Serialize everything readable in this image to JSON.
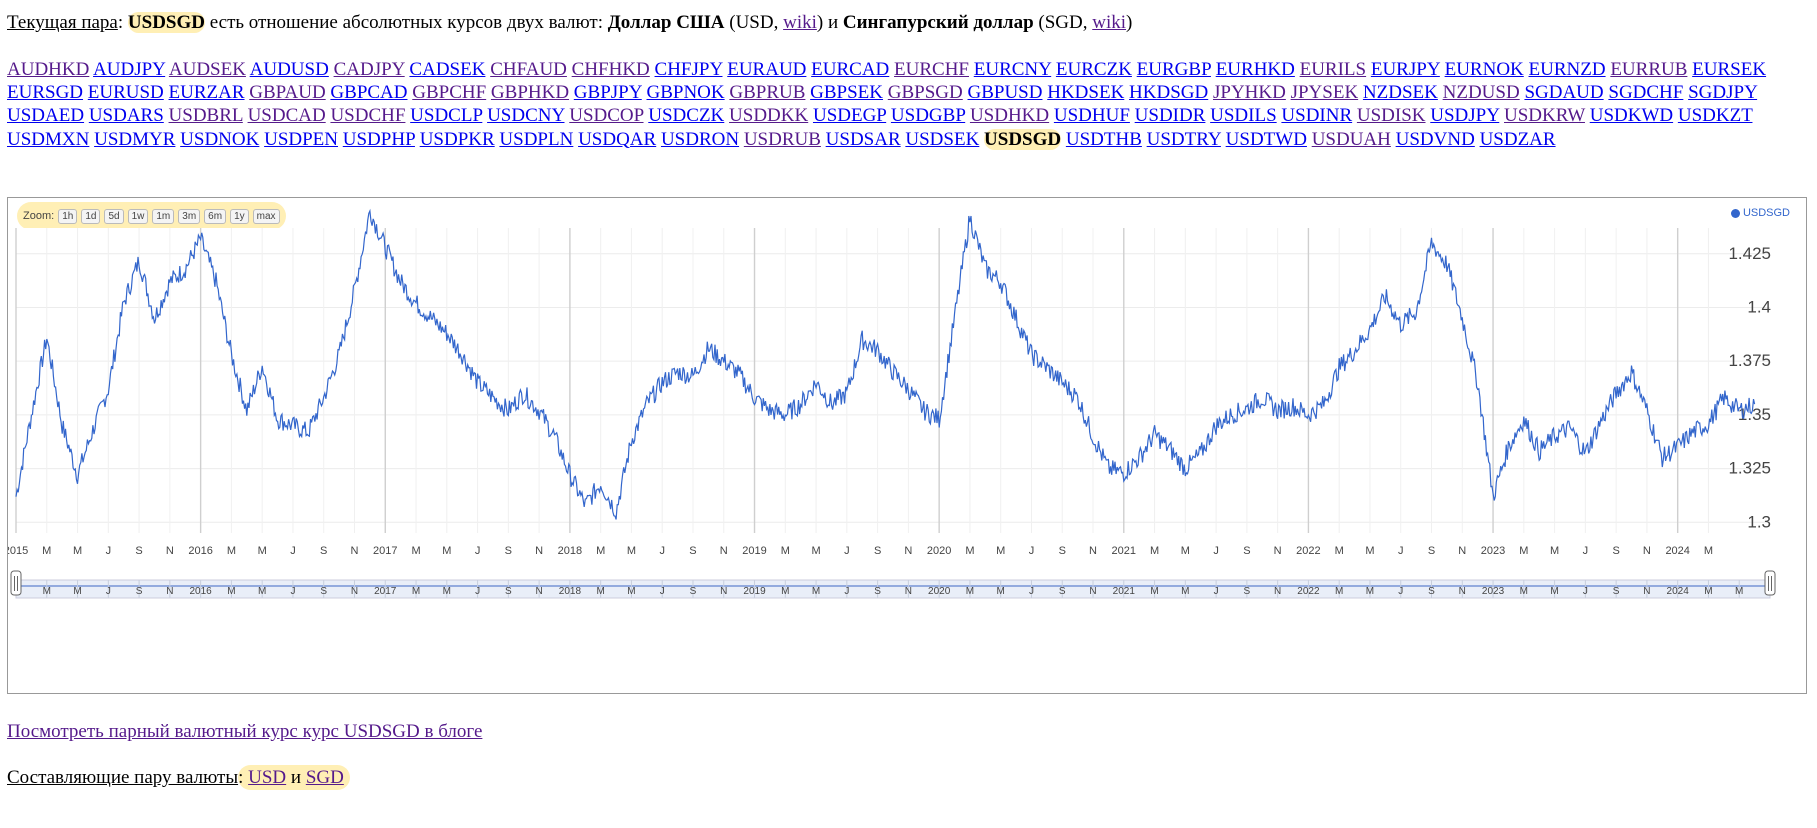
{
  "header": {
    "current_pair_label": "Текущая пара",
    "pair": "USDSGD",
    "relation_text": "есть отношение абсолютных курсов двух валют:",
    "base_name": "Доллар США",
    "base_code": "USD",
    "wiki_label": "wiki",
    "and_word": "и",
    "quote_name": "Сингапурский доллар",
    "quote_code": "SGD"
  },
  "pairs": [
    {
      "code": "AUDHKD",
      "visited": true
    },
    {
      "code": "AUDJPY",
      "visited": false
    },
    {
      "code": "AUDSEK",
      "visited": true
    },
    {
      "code": "AUDUSD",
      "visited": false
    },
    {
      "code": "CADJPY",
      "visited": true
    },
    {
      "code": "CADSEK",
      "visited": false
    },
    {
      "code": "CHFAUD",
      "visited": true
    },
    {
      "code": "CHFHKD",
      "visited": true
    },
    {
      "code": "CHFJPY",
      "visited": false
    },
    {
      "code": "EURAUD",
      "visited": false
    },
    {
      "code": "EURCAD",
      "visited": false
    },
    {
      "code": "EURCHF",
      "visited": true
    },
    {
      "code": "EURCNY",
      "visited": false
    },
    {
      "code": "EURCZK",
      "visited": false
    },
    {
      "code": "EURGBP",
      "visited": false
    },
    {
      "code": "EURHKD",
      "visited": false
    },
    {
      "code": "EURILS",
      "visited": true
    },
    {
      "code": "EURJPY",
      "visited": false
    },
    {
      "code": "EURNOK",
      "visited": false
    },
    {
      "code": "EURNZD",
      "visited": false
    },
    {
      "code": "EURRUB",
      "visited": true
    },
    {
      "code": "EURSEK",
      "visited": false
    },
    {
      "code": "EURSGD",
      "visited": false
    },
    {
      "code": "EURUSD",
      "visited": false
    },
    {
      "code": "EURZAR",
      "visited": false
    },
    {
      "code": "GBPAUD",
      "visited": true
    },
    {
      "code": "GBPCAD",
      "visited": false
    },
    {
      "code": "GBPCHF",
      "visited": true
    },
    {
      "code": "GBPHKD",
      "visited": true
    },
    {
      "code": "GBPJPY",
      "visited": false
    },
    {
      "code": "GBPNOK",
      "visited": false
    },
    {
      "code": "GBPRUB",
      "visited": true
    },
    {
      "code": "GBPSEK",
      "visited": false
    },
    {
      "code": "GBPSGD",
      "visited": true
    },
    {
      "code": "GBPUSD",
      "visited": false
    },
    {
      "code": "HKDSEK",
      "visited": false
    },
    {
      "code": "HKDSGD",
      "visited": false
    },
    {
      "code": "JPYHKD",
      "visited": true
    },
    {
      "code": "JPYSEK",
      "visited": true
    },
    {
      "code": "NZDSEK",
      "visited": false
    },
    {
      "code": "NZDUSD",
      "visited": true
    },
    {
      "code": "SGDAUD",
      "visited": false
    },
    {
      "code": "SGDCHF",
      "visited": false
    },
    {
      "code": "SGDJPY",
      "visited": false
    },
    {
      "code": "USDAED",
      "visited": false
    },
    {
      "code": "USDARS",
      "visited": false
    },
    {
      "code": "USDBRL",
      "visited": true
    },
    {
      "code": "USDCAD",
      "visited": true
    },
    {
      "code": "USDCHF",
      "visited": true
    },
    {
      "code": "USDCLP",
      "visited": false
    },
    {
      "code": "USDCNY",
      "visited": false
    },
    {
      "code": "USDCOP",
      "visited": true
    },
    {
      "code": "USDCZK",
      "visited": false
    },
    {
      "code": "USDDKK",
      "visited": true
    },
    {
      "code": "USDEGP",
      "visited": false
    },
    {
      "code": "USDGBP",
      "visited": false
    },
    {
      "code": "USDHKD",
      "visited": true
    },
    {
      "code": "USDHUF",
      "visited": false
    },
    {
      "code": "USDIDR",
      "visited": false
    },
    {
      "code": "USDILS",
      "visited": false
    },
    {
      "code": "USDINR",
      "visited": false
    },
    {
      "code": "USDISK",
      "visited": true
    },
    {
      "code": "USDJPY",
      "visited": false
    },
    {
      "code": "USDKRW",
      "visited": true
    },
    {
      "code": "USDKWD",
      "visited": false
    },
    {
      "code": "USDKZT",
      "visited": false
    },
    {
      "code": "USDMXN",
      "visited": false
    },
    {
      "code": "USDMYR",
      "visited": false
    },
    {
      "code": "USDNOK",
      "visited": false
    },
    {
      "code": "USDPEN",
      "visited": false
    },
    {
      "code": "USDPHP",
      "visited": false
    },
    {
      "code": "USDPKR",
      "visited": false
    },
    {
      "code": "USDPLN",
      "visited": false
    },
    {
      "code": "USDQAR",
      "visited": false
    },
    {
      "code": "USDRON",
      "visited": false
    },
    {
      "code": "USDRUB",
      "visited": true
    },
    {
      "code": "USDSAR",
      "visited": false
    },
    {
      "code": "USDSEK",
      "visited": false
    },
    {
      "code": "USDSGD",
      "visited": false,
      "current": true
    },
    {
      "code": "USDTHB",
      "visited": false
    },
    {
      "code": "USDTRY",
      "visited": false
    },
    {
      "code": "USDTWD",
      "visited": false
    },
    {
      "code": "USDUAH",
      "visited": true
    },
    {
      "code": "USDVND",
      "visited": false
    },
    {
      "code": "USDZAR",
      "visited": false
    }
  ],
  "chart": {
    "zoom_label": "Zoom:",
    "zoom_buttons": [
      "1h",
      "1d",
      "5d",
      "1w",
      "1m",
      "3m",
      "6m",
      "1y",
      "max"
    ],
    "legend_label": "USDSGD"
  },
  "chart_data": {
    "type": "line",
    "series_name": "USDSGD",
    "y_ticks": [
      1.3,
      1.325,
      1.35,
      1.375,
      1.4,
      1.425
    ],
    "ylim": [
      1.295,
      1.437
    ],
    "x_range": [
      "2015-01",
      "2024-07"
    ],
    "grid": true,
    "legend_position": "top-right",
    "x_tick_labels": [
      "2015",
      "M",
      "M",
      "J",
      "S",
      "N",
      "2016",
      "M",
      "M",
      "J",
      "S",
      "N",
      "2017",
      "M",
      "M",
      "J",
      "S",
      "N",
      "2018",
      "M",
      "M",
      "J",
      "S",
      "N",
      "2019",
      "M",
      "M",
      "J",
      "S",
      "N",
      "2020",
      "M",
      "M",
      "J",
      "S",
      "N",
      "2021",
      "M",
      "M",
      "J",
      "S",
      "N",
      "2022",
      "M",
      "M",
      "J",
      "S",
      "N",
      "2023",
      "M",
      "M",
      "J",
      "S",
      "N",
      "2024",
      "M"
    ],
    "navigator_tick_labels": [
      "M",
      "M",
      "J",
      "S",
      "N",
      "2016",
      "M",
      "M",
      "J",
      "S",
      "N",
      "2017",
      "M",
      "M",
      "J",
      "S",
      "N",
      "2018",
      "M",
      "M",
      "J",
      "S",
      "N",
      "2019",
      "M",
      "M",
      "J",
      "S",
      "N",
      "2020",
      "M",
      "M",
      "J",
      "S",
      "N",
      "2021",
      "M",
      "M",
      "J",
      "S",
      "N",
      "2022",
      "M",
      "M",
      "J",
      "S",
      "N",
      "2023",
      "M",
      "M",
      "J",
      "S",
      "N",
      "2024",
      "M",
      "M"
    ],
    "points": [
      [
        "2015-01",
        1.312
      ],
      [
        "2015-02",
        1.35
      ],
      [
        "2015-03",
        1.386
      ],
      [
        "2015-04",
        1.345
      ],
      [
        "2015-05",
        1.322
      ],
      [
        "2015-06",
        1.343
      ],
      [
        "2015-07",
        1.362
      ],
      [
        "2015-08",
        1.402
      ],
      [
        "2015-09",
        1.422
      ],
      [
        "2015-10",
        1.395
      ],
      [
        "2015-11",
        1.412
      ],
      [
        "2015-12",
        1.418
      ],
      [
        "2016-01",
        1.432
      ],
      [
        "2016-02",
        1.412
      ],
      [
        "2016-03",
        1.378
      ],
      [
        "2016-04",
        1.352
      ],
      [
        "2016-05",
        1.373
      ],
      [
        "2016-06",
        1.348
      ],
      [
        "2016-07",
        1.345
      ],
      [
        "2016-08",
        1.342
      ],
      [
        "2016-09",
        1.358
      ],
      [
        "2016-10",
        1.378
      ],
      [
        "2016-11",
        1.408
      ],
      [
        "2016-12",
        1.445
      ],
      [
        "2017-01",
        1.428
      ],
      [
        "2017-02",
        1.412
      ],
      [
        "2017-03",
        1.402
      ],
      [
        "2017-04",
        1.395
      ],
      [
        "2017-05",
        1.388
      ],
      [
        "2017-06",
        1.378
      ],
      [
        "2017-07",
        1.365
      ],
      [
        "2017-08",
        1.358
      ],
      [
        "2017-09",
        1.352
      ],
      [
        "2017-10",
        1.36
      ],
      [
        "2017-11",
        1.352
      ],
      [
        "2017-12",
        1.34
      ],
      [
        "2018-01",
        1.322
      ],
      [
        "2018-02",
        1.308
      ],
      [
        "2018-03",
        1.318
      ],
      [
        "2018-04",
        1.305
      ],
      [
        "2018-05",
        1.338
      ],
      [
        "2018-06",
        1.355
      ],
      [
        "2018-07",
        1.365
      ],
      [
        "2018-08",
        1.37
      ],
      [
        "2018-09",
        1.368
      ],
      [
        "2018-10",
        1.381
      ],
      [
        "2018-11",
        1.375
      ],
      [
        "2018-12",
        1.369
      ],
      [
        "2019-01",
        1.358
      ],
      [
        "2019-02",
        1.352
      ],
      [
        "2019-03",
        1.35
      ],
      [
        "2019-04",
        1.355
      ],
      [
        "2019-05",
        1.365
      ],
      [
        "2019-06",
        1.355
      ],
      [
        "2019-07",
        1.36
      ],
      [
        "2019-08",
        1.385
      ],
      [
        "2019-09",
        1.38
      ],
      [
        "2019-10",
        1.37
      ],
      [
        "2019-11",
        1.362
      ],
      [
        "2019-12",
        1.352
      ],
      [
        "2020-01",
        1.348
      ],
      [
        "2020-02",
        1.395
      ],
      [
        "2020-03",
        1.442
      ],
      [
        "2020-04",
        1.418
      ],
      [
        "2020-05",
        1.412
      ],
      [
        "2020-06",
        1.395
      ],
      [
        "2020-07",
        1.378
      ],
      [
        "2020-08",
        1.372
      ],
      [
        "2020-09",
        1.365
      ],
      [
        "2020-10",
        1.358
      ],
      [
        "2020-11",
        1.34
      ],
      [
        "2020-12",
        1.325
      ],
      [
        "2021-01",
        1.323
      ],
      [
        "2021-02",
        1.33
      ],
      [
        "2021-03",
        1.341
      ],
      [
        "2021-04",
        1.334
      ],
      [
        "2021-05",
        1.325
      ],
      [
        "2021-06",
        1.332
      ],
      [
        "2021-07",
        1.345
      ],
      [
        "2021-08",
        1.35
      ],
      [
        "2021-09",
        1.353
      ],
      [
        "2021-10",
        1.358
      ],
      [
        "2021-11",
        1.352
      ],
      [
        "2021-12",
        1.354
      ],
      [
        "2022-01",
        1.35
      ],
      [
        "2022-02",
        1.355
      ],
      [
        "2022-03",
        1.372
      ],
      [
        "2022-04",
        1.38
      ],
      [
        "2022-05",
        1.39
      ],
      [
        "2022-06",
        1.405
      ],
      [
        "2022-07",
        1.392
      ],
      [
        "2022-08",
        1.398
      ],
      [
        "2022-09",
        1.43
      ],
      [
        "2022-10",
        1.42
      ],
      [
        "2022-11",
        1.395
      ],
      [
        "2022-12",
        1.365
      ],
      [
        "2023-01",
        1.312
      ],
      [
        "2023-02",
        1.335
      ],
      [
        "2023-03",
        1.348
      ],
      [
        "2023-04",
        1.333
      ],
      [
        "2023-05",
        1.34
      ],
      [
        "2023-06",
        1.344
      ],
      [
        "2023-07",
        1.332
      ],
      [
        "2023-08",
        1.347
      ],
      [
        "2023-09",
        1.36
      ],
      [
        "2023-10",
        1.37
      ],
      [
        "2023-11",
        1.352
      ],
      [
        "2023-12",
        1.33
      ],
      [
        "2024-01",
        1.335
      ],
      [
        "2024-02",
        1.342
      ],
      [
        "2024-03",
        1.346
      ],
      [
        "2024-04",
        1.358
      ],
      [
        "2024-05",
        1.352
      ],
      [
        "2024-06",
        1.355
      ]
    ]
  },
  "footer": {
    "blog_link": "Посмотреть парный валютный курс курс USDSGD в блоге",
    "components_label": "Составляющие пару валюты",
    "usd": "USD",
    "and_word": "и",
    "sgd": "SGD"
  }
}
